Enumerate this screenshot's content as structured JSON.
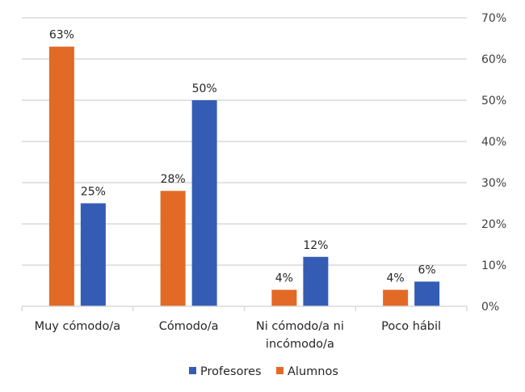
{
  "chart_data": {
    "type": "bar",
    "title": "",
    "xlabel": "",
    "ylabel": "",
    "categories": [
      "Muy cómodo/a",
      "Cómodo/a",
      "Ni cómodo/a ni incómodo/a",
      "Poco hábil"
    ],
    "category_lines": [
      [
        "Muy cómodo/a"
      ],
      [
        "Cómodo/a"
      ],
      [
        "Ni cómodo/a ni",
        "incómodo/a"
      ],
      [
        "Poco hábil"
      ]
    ],
    "series": [
      {
        "name": "Alumnos",
        "color": "#e36926",
        "values": [
          63,
          28,
          4,
          4
        ],
        "labels": [
          "63%",
          "28%",
          "4%",
          "4%"
        ]
      },
      {
        "name": "Profesores",
        "color": "#355cb5",
        "values": [
          25,
          50,
          12,
          6
        ],
        "labels": [
          "25%",
          "50%",
          "12%",
          "6%"
        ]
      }
    ],
    "ylim": [
      0,
      70
    ],
    "yticks": [
      0,
      10,
      20,
      30,
      40,
      50,
      60,
      70
    ],
    "ytick_labels": [
      "0%",
      "10%",
      "20%",
      "30%",
      "40%",
      "50%",
      "60%",
      "70%"
    ],
    "y_axis_position": "right",
    "grid": true,
    "legend": {
      "position": "bottom",
      "order": [
        "Profesores",
        "Alumnos"
      ]
    }
  }
}
